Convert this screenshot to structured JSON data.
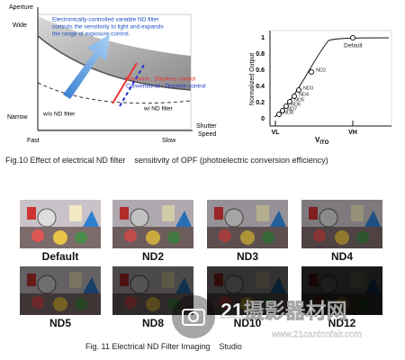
{
  "figure10": {
    "diagram": {
      "y_axis_label": "Aperture",
      "y_top": "Wide",
      "y_bottom": "Narrow",
      "x_left": "Fast",
      "x_right": "Slow",
      "x_axis_label_1": "Shutter",
      "x_axis_label_2": "Speed",
      "annotation_1": "Electronically-controlled variable ND filter",
      "annotation_2": "controls the sensitivity to light and expands",
      "annotation_3": "the range of exposure control.",
      "this_work": "This work : Stepless control",
      "conventional": "Conventional : Discrete control",
      "without_filter": "w/o ND filter",
      "with_filter": "w/ ND filter"
    },
    "chart": {
      "y_label": "Normalized Output",
      "y_ticks": [
        "0",
        "0.2",
        "0.4",
        "0.6",
        "0.8",
        "1"
      ],
      "x_label": "V",
      "x_label_sub": "ITO",
      "x_ticks": [
        "VL",
        "VH"
      ],
      "points": [
        "Default",
        "ND2",
        "ND3",
        "ND4",
        "ND5",
        "ND6",
        "ND7",
        "ND8"
      ]
    },
    "caption": "Fig.10 Effect of electrical ND filter    sensitivity of OPF (photoelectric conversion efficiency)"
  },
  "figure11": {
    "images": [
      "Default",
      "ND2",
      "ND3",
      "ND4",
      "ND5",
      "ND8",
      "ND10",
      "ND12"
    ],
    "caption": "Fig. 11 Electrical ND Filter Imaging    Studio"
  },
  "watermark": {
    "name": "21摄影器材网",
    "url": "www.21cantonfair.com"
  }
}
